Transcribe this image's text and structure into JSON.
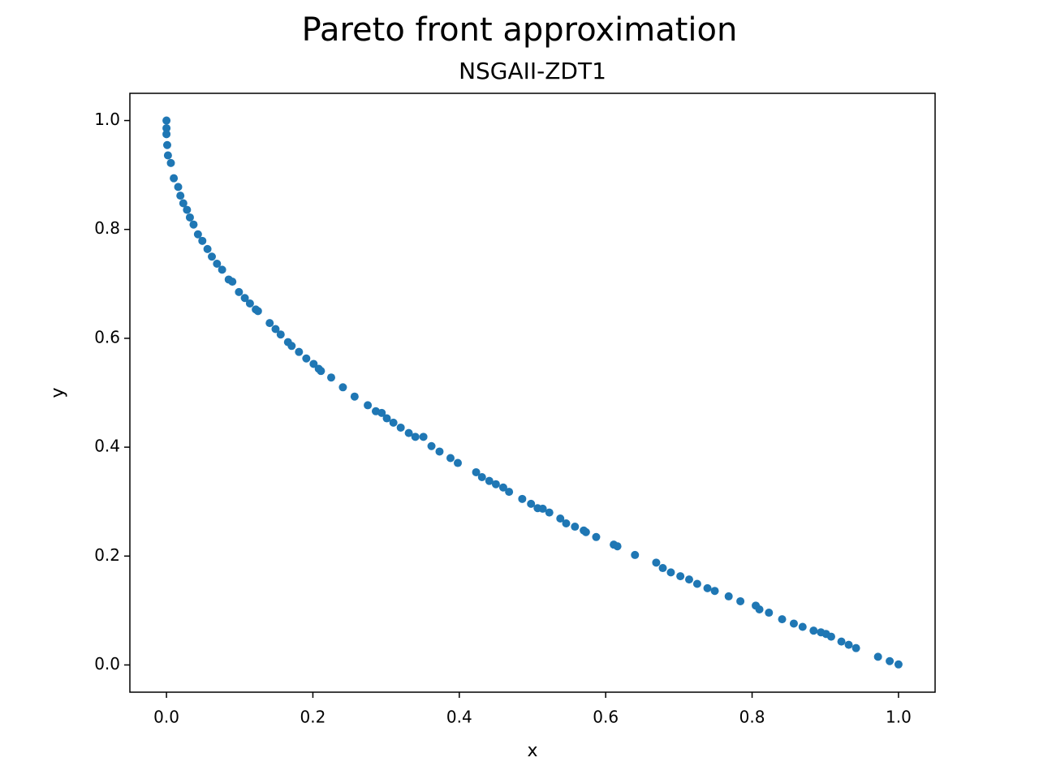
{
  "chart_data": {
    "type": "scatter",
    "title": "Pareto front approximation",
    "subtitle": "NSGAII-ZDT1",
    "xlabel": "x",
    "ylabel": "y",
    "color": "#1f77b4",
    "xlim": [
      -0.05,
      1.05
    ],
    "ylim": [
      -0.05,
      1.05
    ],
    "xticks": [
      {
        "value": 0,
        "label": "0.0"
      },
      0.2,
      0.4,
      0.6,
      0.8,
      {
        "value": 1,
        "label": "1.0"
      }
    ],
    "yticks": [
      {
        "value": 0,
        "label": "0.0"
      },
      0.2,
      0.4,
      0.6,
      0.8,
      {
        "value": 1,
        "label": "1.0"
      }
    ],
    "x": [
      0.0,
      0.0,
      0.0,
      0.001,
      0.002,
      0.006,
      0.01,
      0.016,
      0.019,
      0.023,
      0.028,
      0.032,
      0.037,
      0.043,
      0.049,
      0.056,
      0.062,
      0.069,
      0.076,
      0.085,
      0.09,
      0.099,
      0.107,
      0.114,
      0.122,
      0.125,
      0.141,
      0.149,
      0.156,
      0.166,
      0.171,
      0.181,
      0.191,
      0.201,
      0.208,
      0.211,
      0.225,
      0.241,
      0.257,
      0.275,
      0.286,
      0.294,
      0.301,
      0.31,
      0.32,
      0.331,
      0.34,
      0.351,
      0.362,
      0.373,
      0.388,
      0.398,
      0.423,
      0.431,
      0.441,
      0.45,
      0.46,
      0.468,
      0.486,
      0.498,
      0.507,
      0.514,
      0.523,
      0.538,
      0.546,
      0.558,
      0.57,
      0.573,
      0.587,
      0.611,
      0.616,
      0.64,
      0.669,
      0.678,
      0.689,
      0.702,
      0.714,
      0.725,
      0.739,
      0.749,
      0.768,
      0.784,
      0.805,
      0.81,
      0.823,
      0.841,
      0.857,
      0.869,
      0.884,
      0.894,
      0.901,
      0.908,
      0.922,
      0.932,
      0.942,
      0.972,
      0.988,
      1.0
    ],
    "values": [
      1.0,
      0.986,
      0.975,
      0.955,
      0.936,
      0.922,
      0.894,
      0.878,
      0.862,
      0.848,
      0.836,
      0.822,
      0.809,
      0.791,
      0.779,
      0.764,
      0.75,
      0.737,
      0.726,
      0.708,
      0.704,
      0.685,
      0.674,
      0.664,
      0.653,
      0.65,
      0.628,
      0.617,
      0.607,
      0.593,
      0.586,
      0.575,
      0.563,
      0.553,
      0.544,
      0.54,
      0.528,
      0.51,
      0.493,
      0.477,
      0.466,
      0.463,
      0.453,
      0.445,
      0.436,
      0.426,
      0.419,
      0.419,
      0.402,
      0.392,
      0.38,
      0.371,
      0.354,
      0.345,
      0.338,
      0.332,
      0.326,
      0.318,
      0.305,
      0.296,
      0.288,
      0.287,
      0.28,
      0.269,
      0.26,
      0.254,
      0.247,
      0.244,
      0.235,
      0.221,
      0.218,
      0.202,
      0.188,
      0.178,
      0.17,
      0.163,
      0.157,
      0.149,
      0.141,
      0.136,
      0.126,
      0.117,
      0.109,
      0.102,
      0.096,
      0.084,
      0.076,
      0.07,
      0.063,
      0.06,
      0.057,
      0.052,
      0.043,
      0.037,
      0.031,
      0.015,
      0.007,
      0.001
    ]
  }
}
